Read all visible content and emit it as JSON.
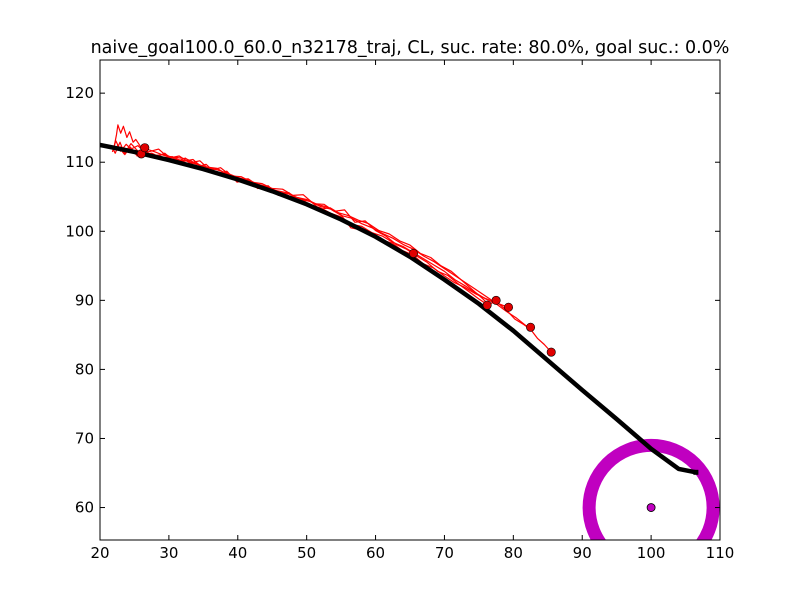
{
  "chart_data": {
    "type": "scatter",
    "title": "naive_goal100.0_60.0_n32178_traj, CL, suc. rate: 80.0%, goal suc.: 0.0%",
    "xlabel": "",
    "ylabel": "",
    "xlim": [
      20,
      110
    ],
    "ylim": [
      55.3,
      124.8
    ],
    "x_ticks": [
      20,
      30,
      40,
      50,
      60,
      70,
      80,
      90,
      100,
      110
    ],
    "y_ticks": [
      60,
      70,
      80,
      90,
      100,
      110,
      120
    ],
    "grid": false,
    "legend": "none",
    "colors": {
      "reference_path": "#000000",
      "trials": "#ff0000",
      "end_markers": "#e00000",
      "goal_ring": "#c000c0",
      "goal_point": "#c000c0"
    },
    "goal": {
      "x": 100,
      "y": 60,
      "ring_radius": 9
    },
    "reference_path": {
      "x": [
        20,
        25,
        30,
        35,
        40,
        45,
        50,
        55,
        60,
        65,
        70,
        75,
        80,
        85,
        90,
        95,
        100,
        104,
        106.5
      ],
      "y": [
        112.5,
        111.5,
        110.3,
        109,
        107.5,
        105.8,
        103.9,
        101.7,
        99.2,
        96.3,
        93,
        89.5,
        85.6,
        81.3,
        77,
        72.8,
        68.5,
        65.6,
        65.1
      ]
    },
    "trials": [
      {
        "x": [
          22,
          22.4,
          22.6,
          23,
          23.4,
          23.9,
          24.3,
          24.8,
          25.2,
          26,
          27,
          28.5,
          30,
          31.5,
          33,
          34.5,
          36,
          37.5,
          39,
          40.5,
          42,
          43.5,
          45,
          46.5,
          48,
          49.5,
          51,
          52.5,
          54,
          55.5,
          57,
          58.5,
          60,
          61.5,
          63,
          64.5,
          66,
          67.5,
          69,
          70.5,
          72,
          73.5,
          75,
          76.2,
          77.5,
          79,
          80.2,
          81.5,
          82.5,
          83.5,
          84.5,
          85.5
        ],
        "y": [
          112,
          114,
          115.4,
          114.2,
          115.2,
          113.6,
          114.4,
          112.9,
          113.3,
          112.1,
          111.5,
          111.9,
          110.6,
          110.9,
          109.9,
          110.2,
          108.8,
          109.2,
          108,
          107.9,
          107.1,
          106.9,
          106.2,
          106.1,
          105.2,
          105.3,
          104,
          103.9,
          102.9,
          103.1,
          101.3,
          101.5,
          100.1,
          99.3,
          98.1,
          97.4,
          96.4,
          95.5,
          94.2,
          93.6,
          92.4,
          91.3,
          90.2,
          89.4,
          89.8,
          88.6,
          87.3,
          86.5,
          85.8,
          84.5,
          83.6,
          82.5
        ]
      },
      {
        "x": [
          21.8,
          22.3,
          23,
          23.8,
          24.5,
          25.5,
          26.5,
          28,
          29.5,
          31,
          32.5,
          34,
          35.5,
          37,
          38.5,
          40,
          41.5,
          43,
          44.5,
          46,
          47.5,
          49,
          50.5,
          52,
          53.5,
          55,
          56.5,
          58,
          59.5,
          61,
          62.5,
          64,
          65.5,
          67,
          68.5,
          70,
          71.5,
          73,
          74.5,
          76,
          77.5,
          79,
          80.5,
          82
        ],
        "y": [
          111.5,
          113.1,
          111.6,
          112.6,
          111.9,
          112.4,
          111.4,
          111,
          111.1,
          110.4,
          110.2,
          109.7,
          109.3,
          109.1,
          108.2,
          107.5,
          107.6,
          106.6,
          106.4,
          105.6,
          105.1,
          104.8,
          103.8,
          103.4,
          102.6,
          102.1,
          101,
          100.7,
          99.8,
          99.3,
          98.4,
          97.8,
          96.9,
          96,
          95.1,
          94.2,
          93,
          92.1,
          91.1,
          90.2,
          89.5,
          88.4,
          87.4,
          86.2
        ]
      },
      {
        "x": [
          21.7,
          22.2,
          22.9,
          23.6,
          24.4,
          25.4,
          26.4,
          27.9,
          29.4,
          30.9,
          32.4,
          33.9,
          35.4,
          36.9,
          38.4,
          39.9,
          41.4,
          42.9,
          44.4,
          45.9,
          47.4,
          48.9,
          50.4,
          51.9,
          53.4,
          54.9,
          56.4,
          57.9,
          59.4,
          60.9,
          62.4,
          63.9,
          65.4,
          66.9,
          68.4,
          69.9,
          71.4,
          72.9,
          74.4,
          75.9,
          77.4,
          78.9
        ],
        "y": [
          112.3,
          111.3,
          112.9,
          111.1,
          112.2,
          110.9,
          111.8,
          110.6,
          111.3,
          110,
          110.6,
          109.3,
          109.7,
          108.3,
          108.7,
          107.1,
          107.5,
          106.2,
          106.6,
          105.2,
          105.6,
          104.3,
          104.5,
          103.2,
          103.4,
          102.5,
          100.5,
          100.2,
          99.4,
          98.7,
          98.3,
          97.2,
          96.6,
          95.3,
          94.7,
          93.6,
          92.6,
          91.9,
          91,
          90.3,
          89.7,
          89.1
        ]
      },
      {
        "x": [
          22,
          23,
          24,
          25,
          26.2,
          27.5,
          29,
          30.5,
          32,
          33.5,
          35,
          36.5,
          38,
          39.5,
          41,
          42.5,
          44,
          45.5,
          47,
          48.5,
          50,
          51.5,
          53,
          54.5,
          56,
          57.5,
          59,
          60.5,
          62,
          63.5,
          65,
          66.5,
          68,
          69.5,
          71,
          72.5,
          74,
          75.5,
          76.5
        ],
        "y": [
          111.9,
          112.2,
          111.6,
          111.7,
          111.1,
          111.3,
          110.6,
          110.8,
          110.1,
          110.4,
          109.1,
          108.5,
          108.2,
          107.7,
          107.4,
          106.9,
          106.5,
          105.9,
          105.6,
          104.9,
          104.6,
          103.9,
          103.5,
          102.7,
          102.3,
          101.6,
          101.1,
          100.1,
          99.6,
          98.6,
          98,
          96.8,
          96.2,
          95,
          94.2,
          92.9,
          91.6,
          90.3,
          89.3
        ]
      },
      {
        "x": [
          22.5,
          23.5,
          24.5,
          25.5,
          26.5,
          28,
          29.5,
          31,
          32.5,
          34,
          35.5,
          37,
          38.5,
          40,
          41.5,
          43,
          44.5,
          46,
          47.5,
          49,
          50.5,
          52,
          53.5,
          55,
          56.5,
          58,
          59.5,
          61,
          62.5,
          64,
          65.5,
          67,
          68.5,
          70,
          71.5,
          73,
          74.5,
          76,
          77.5,
          79.3
        ],
        "y": [
          112.5,
          111.2,
          112.7,
          111.6,
          112,
          111.5,
          110.9,
          110.7,
          110.5,
          109.8,
          109.2,
          108.9,
          108.4,
          107.8,
          107.4,
          106.8,
          106.4,
          105.6,
          105.4,
          104.7,
          104.3,
          103.6,
          103.2,
          102.3,
          101.9,
          101.1,
          100.5,
          99.7,
          99,
          98.1,
          97.4,
          96.4,
          95.6,
          94.6,
          93.6,
          92.6,
          91.6,
          90.6,
          89.6,
          89
        ]
      }
    ],
    "end_markers": {
      "x": [
        26,
        26.5,
        65.5,
        76.2,
        77.5,
        79.3,
        82.5,
        85.5
      ],
      "y": [
        111.2,
        112.1,
        96.8,
        89.3,
        90,
        89,
        86.1,
        82.5
      ]
    }
  }
}
